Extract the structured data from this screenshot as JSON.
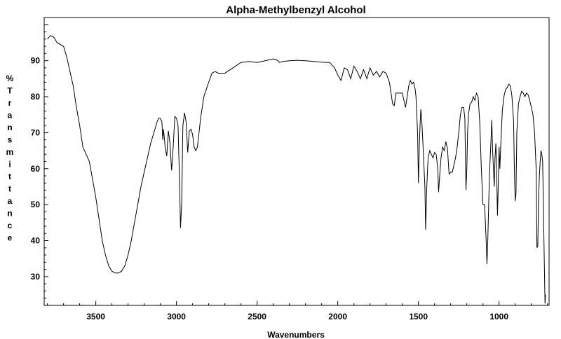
{
  "chart_data": {
    "type": "line",
    "title": "Alpha-Methylbenzyl Alcohol",
    "xlabel": "Wavenumbers",
    "ylabel": "% Transmittance",
    "xlim": [
      3820,
      690
    ],
    "ylim": [
      22,
      102
    ],
    "x_reversed": true,
    "grid": false,
    "legend": "none",
    "x_major_ticks": [
      3500,
      3000,
      2500,
      2000,
      1500,
      1000
    ],
    "y_major_ticks": [
      30,
      40,
      50,
      60,
      70,
      80,
      90
    ],
    "series": [
      {
        "color": "#000000",
        "points": [
          [
            3800,
            96.0
          ],
          [
            3780,
            97.0
          ],
          [
            3760,
            96.5
          ],
          [
            3740,
            95.0
          ],
          [
            3720,
            94.5
          ],
          [
            3700,
            94.0
          ],
          [
            3680,
            91.0
          ],
          [
            3660,
            87.0
          ],
          [
            3640,
            83.0
          ],
          [
            3620,
            77.0
          ],
          [
            3600,
            72.0
          ],
          [
            3580,
            66.0
          ],
          [
            3560,
            64.0
          ],
          [
            3540,
            62.0
          ],
          [
            3520,
            57.0
          ],
          [
            3500,
            52.0
          ],
          [
            3480,
            46.0
          ],
          [
            3460,
            40.0
          ],
          [
            3440,
            36.0
          ],
          [
            3420,
            33.0
          ],
          [
            3400,
            31.5
          ],
          [
            3380,
            31.0
          ],
          [
            3360,
            31.0
          ],
          [
            3340,
            31.5
          ],
          [
            3320,
            33.0
          ],
          [
            3300,
            36.0
          ],
          [
            3280,
            40.0
          ],
          [
            3260,
            45.0
          ],
          [
            3240,
            50.0
          ],
          [
            3220,
            55.0
          ],
          [
            3200,
            59.0
          ],
          [
            3180,
            63.0
          ],
          [
            3160,
            67.0
          ],
          [
            3140,
            70.0
          ],
          [
            3120,
            73.0
          ],
          [
            3110,
            74.0
          ],
          [
            3100,
            74.0
          ],
          [
            3090,
            73.0
          ],
          [
            3085,
            68.0
          ],
          [
            3080,
            71.0
          ],
          [
            3070,
            66.0
          ],
          [
            3060,
            63.5
          ],
          [
            3050,
            70.5
          ],
          [
            3040,
            67.0
          ],
          [
            3030,
            59.5
          ],
          [
            3020,
            66.0
          ],
          [
            3010,
            74.5
          ],
          [
            3000,
            74.0
          ],
          [
            2990,
            72.0
          ],
          [
            2980,
            55.0
          ],
          [
            2975,
            43.5
          ],
          [
            2968,
            50.0
          ],
          [
            2960,
            72.0
          ],
          [
            2950,
            75.5
          ],
          [
            2940,
            73.0
          ],
          [
            2930,
            64.5
          ],
          [
            2920,
            70.5
          ],
          [
            2910,
            71.0
          ],
          [
            2900,
            69.5
          ],
          [
            2890,
            66.0
          ],
          [
            2880,
            65.0
          ],
          [
            2870,
            66.0
          ],
          [
            2850,
            74.0
          ],
          [
            2830,
            80.0
          ],
          [
            2800,
            84.0
          ],
          [
            2780,
            86.5
          ],
          [
            2760,
            87.0
          ],
          [
            2740,
            86.5
          ],
          [
            2700,
            86.5
          ],
          [
            2650,
            88.0
          ],
          [
            2600,
            89.5
          ],
          [
            2550,
            89.8
          ],
          [
            2500,
            89.5
          ],
          [
            2450,
            90.0
          ],
          [
            2400,
            90.5
          ],
          [
            2380,
            90.3
          ],
          [
            2360,
            89.5
          ],
          [
            2340,
            89.8
          ],
          [
            2300,
            90.0
          ],
          [
            2250,
            90.1
          ],
          [
            2200,
            90.0
          ],
          [
            2150,
            89.8
          ],
          [
            2100,
            89.6
          ],
          [
            2050,
            89.5
          ],
          [
            2020,
            88.0
          ],
          [
            2000,
            86.0
          ],
          [
            1980,
            84.5
          ],
          [
            1960,
            88.0
          ],
          [
            1940,
            87.5
          ],
          [
            1920,
            85.0
          ],
          [
            1900,
            88.5
          ],
          [
            1880,
            87.0
          ],
          [
            1860,
            85.0
          ],
          [
            1840,
            87.5
          ],
          [
            1820,
            85.0
          ],
          [
            1800,
            88.0
          ],
          [
            1780,
            86.0
          ],
          [
            1760,
            87.0
          ],
          [
            1740,
            85.5
          ],
          [
            1720,
            87.0
          ],
          [
            1700,
            86.5
          ],
          [
            1680,
            84.0
          ],
          [
            1660,
            78.0
          ],
          [
            1650,
            77.5
          ],
          [
            1640,
            81.0
          ],
          [
            1620,
            81.0
          ],
          [
            1600,
            81.0
          ],
          [
            1590,
            79.0
          ],
          [
            1580,
            77.0
          ],
          [
            1570,
            80.0
          ],
          [
            1560,
            83.0
          ],
          [
            1550,
            84.5
          ],
          [
            1540,
            83.5
          ],
          [
            1530,
            84.0
          ],
          [
            1520,
            82.0
          ],
          [
            1515,
            80.0
          ],
          [
            1505,
            70.0
          ],
          [
            1500,
            56.0
          ],
          [
            1495,
            65.0
          ],
          [
            1490,
            72.0
          ],
          [
            1485,
            76.5
          ],
          [
            1480,
            74.0
          ],
          [
            1470,
            65.0
          ],
          [
            1460,
            55.0
          ],
          [
            1455,
            43.0
          ],
          [
            1448,
            55.0
          ],
          [
            1440,
            63.0
          ],
          [
            1430,
            65.0
          ],
          [
            1420,
            64.0
          ],
          [
            1410,
            63.0
          ],
          [
            1400,
            64.5
          ],
          [
            1390,
            64.0
          ],
          [
            1380,
            60.0
          ],
          [
            1375,
            53.5
          ],
          [
            1368,
            58.0
          ],
          [
            1360,
            63.0
          ],
          [
            1350,
            66.0
          ],
          [
            1340,
            65.0
          ],
          [
            1330,
            67.5
          ],
          [
            1320,
            65.5
          ],
          [
            1310,
            58.5
          ],
          [
            1300,
            59.0
          ],
          [
            1290,
            59.0
          ],
          [
            1280,
            61.0
          ],
          [
            1270,
            63.0
          ],
          [
            1260,
            66.0
          ],
          [
            1250,
            70.0
          ],
          [
            1240,
            75.0
          ],
          [
            1230,
            77.0
          ],
          [
            1220,
            77.0
          ],
          [
            1212,
            74.0
          ],
          [
            1205,
            54.0
          ],
          [
            1200,
            60.0
          ],
          [
            1195,
            70.0
          ],
          [
            1190,
            75.0
          ],
          [
            1180,
            78.0
          ],
          [
            1170,
            78.5
          ],
          [
            1160,
            80.0
          ],
          [
            1150,
            79.0
          ],
          [
            1140,
            81.0
          ],
          [
            1130,
            80.0
          ],
          [
            1120,
            73.0
          ],
          [
            1110,
            60.0
          ],
          [
            1100,
            50.0
          ],
          [
            1090,
            50.0
          ],
          [
            1080,
            40.0
          ],
          [
            1075,
            33.5
          ],
          [
            1070,
            40.0
          ],
          [
            1060,
            58.0
          ],
          [
            1050,
            68.0
          ],
          [
            1045,
            73.5
          ],
          [
            1040,
            65.0
          ],
          [
            1030,
            55.0
          ],
          [
            1025,
            63.0
          ],
          [
            1020,
            67.0
          ],
          [
            1015,
            60.0
          ],
          [
            1010,
            47.0
          ],
          [
            1005,
            55.0
          ],
          [
            1000,
            66.0
          ],
          [
            995,
            60.0
          ],
          [
            990,
            66.0
          ],
          [
            980,
            76.0
          ],
          [
            970,
            80.0
          ],
          [
            960,
            82.0
          ],
          [
            950,
            82.5
          ],
          [
            940,
            83.5
          ],
          [
            930,
            83.0
          ],
          [
            920,
            80.0
          ],
          [
            910,
            73.0
          ],
          [
            905,
            60.0
          ],
          [
            900,
            51.0
          ],
          [
            895,
            53.0
          ],
          [
            890,
            70.0
          ],
          [
            880,
            78.0
          ],
          [
            870,
            80.0
          ],
          [
            860,
            81.5
          ],
          [
            850,
            81.0
          ],
          [
            840,
            80.0
          ],
          [
            830,
            81.0
          ],
          [
            820,
            80.5
          ],
          [
            810,
            79.0
          ],
          [
            800,
            77.0
          ],
          [
            790,
            75.0
          ],
          [
            780,
            70.0
          ],
          [
            770,
            60.0
          ],
          [
            765,
            38.0
          ],
          [
            760,
            38.5
          ],
          [
            755,
            52.0
          ],
          [
            750,
            58.0
          ],
          [
            745,
            62.0
          ],
          [
            740,
            65.0
          ],
          [
            735,
            64.0
          ],
          [
            730,
            62.0
          ],
          [
            725,
            50.0
          ],
          [
            720,
            35.0
          ],
          [
            715,
            22.5
          ],
          [
            712,
            25.0
          ]
        ]
      }
    ]
  }
}
